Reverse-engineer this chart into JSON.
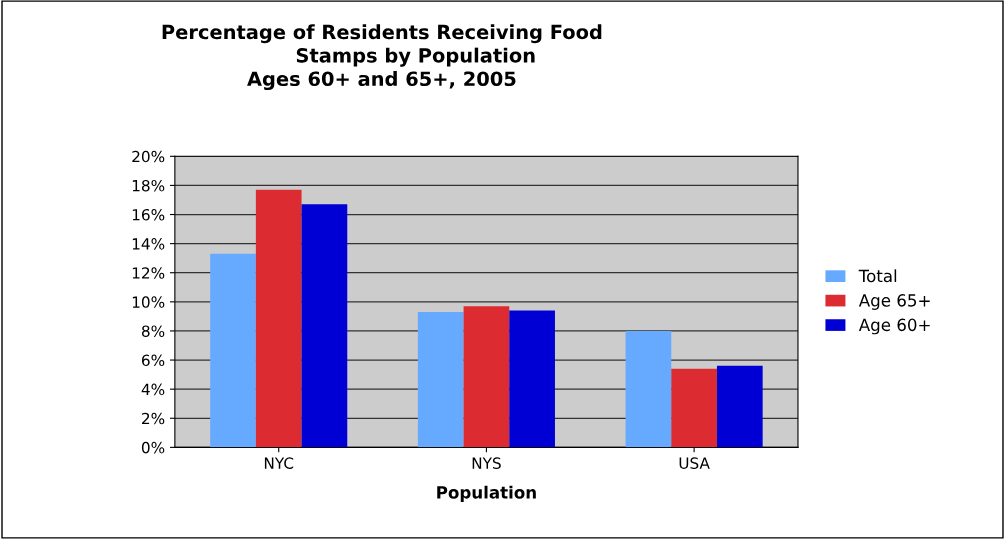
{
  "chart_data": {
    "type": "bar",
    "title": "Percentage of Residents Receiving Food\n          Stamps by Population\nAges 60+ and 65+, 2005",
    "xlabel": "Population",
    "categories": [
      "NYC",
      "NYS",
      "USA"
    ],
    "series": [
      {
        "name": "Total",
        "color": "#66aaff",
        "values": [
          13.3,
          9.3,
          8.0
        ]
      },
      {
        "name": "Age 65+",
        "color": "#dd2c31",
        "values": [
          17.7,
          9.7,
          5.4
        ]
      },
      {
        "name": "Age 60+",
        "color": "#0000d4",
        "values": [
          16.7,
          9.4,
          5.6
        ]
      }
    ],
    "ylim": [
      0,
      20
    ],
    "yticks": [
      {
        "value": 0,
        "label": "0%"
      },
      {
        "value": 2,
        "label": "2%"
      },
      {
        "value": 4,
        "label": "4%"
      },
      {
        "value": 6,
        "label": "6%"
      },
      {
        "value": 8,
        "label": "8%"
      },
      {
        "value": 10,
        "label": "10%"
      },
      {
        "value": 12,
        "label": "12%"
      },
      {
        "value": 14,
        "label": "14%"
      },
      {
        "value": 16,
        "label": "16%"
      },
      {
        "value": 18,
        "label": "18%"
      },
      {
        "value": 20,
        "label": "20%"
      }
    ],
    "grid": "y",
    "legend": "right"
  }
}
